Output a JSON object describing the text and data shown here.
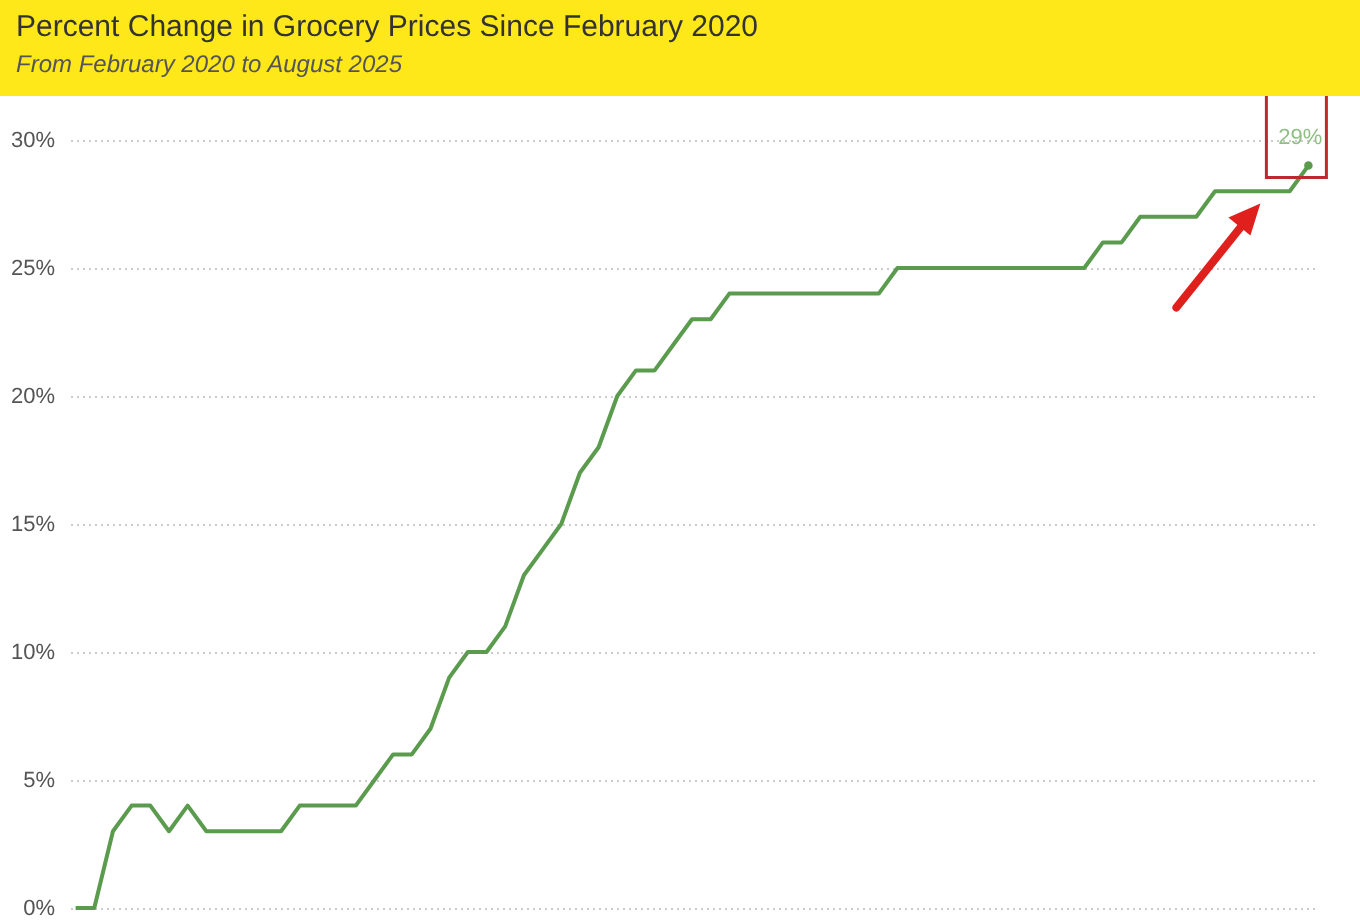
{
  "chart_data": {
    "type": "line",
    "title": "Percent Change in Grocery Prices Since February 2020",
    "subtitle": "From February 2020 to August 2025",
    "categories": [
      null,
      null,
      null,
      null,
      null,
      null,
      null,
      null,
      null,
      null,
      null,
      null,
      null,
      null,
      null,
      null,
      null,
      null,
      null,
      null,
      null,
      null,
      null,
      null,
      null,
      null,
      null,
      null,
      null,
      null,
      null,
      null,
      null,
      null,
      null,
      null,
      null,
      null,
      null,
      null,
      null,
      null,
      null,
      null,
      null,
      null,
      null,
      null,
      null,
      null,
      null,
      null,
      null,
      null,
      null,
      null,
      null,
      null,
      null,
      null,
      null,
      null,
      null,
      null,
      null,
      null,
      null
    ],
    "series": [
      {
        "color": "#5b9b4e",
        "values": [
          0,
          0,
          3,
          4,
          4,
          3,
          4,
          3,
          3,
          3,
          3,
          3,
          4,
          4,
          4,
          4,
          5,
          6,
          6,
          7,
          9,
          10,
          10,
          11,
          13,
          14,
          15,
          17,
          18,
          20,
          21,
          21,
          22,
          23,
          23,
          24,
          24,
          24,
          24,
          24,
          24,
          24,
          24,
          24,
          25,
          25,
          25,
          25,
          25,
          25,
          25,
          25,
          25,
          25,
          25,
          26,
          26,
          27,
          27,
          27,
          27,
          28,
          28,
          28,
          28,
          28,
          29
        ],
        "value_labels": [
          null,
          null,
          null,
          null,
          null,
          null,
          null,
          null,
          null,
          null,
          null,
          null,
          null,
          null,
          null,
          null,
          null,
          null,
          null,
          null,
          null,
          null,
          null,
          null,
          null,
          null,
          null,
          null,
          null,
          null,
          null,
          null,
          null,
          null,
          null,
          null,
          null,
          null,
          null,
          null,
          null,
          null,
          null,
          null,
          null,
          null,
          null,
          null,
          null,
          null,
          null,
          null,
          null,
          null,
          null,
          null,
          null,
          null,
          null,
          null,
          null,
          null,
          null,
          null,
          null,
          null,
          "29%"
        ]
      }
    ],
    "ylim": [
      0,
      30
    ],
    "yticks": [
      {
        "value": 0,
        "label": "0%"
      },
      {
        "value": 5,
        "label": "5%"
      },
      {
        "value": 10,
        "label": "10%"
      },
      {
        "value": 15,
        "label": "15%"
      },
      {
        "value": 20,
        "label": "20%"
      },
      {
        "value": 25,
        "label": "25%"
      },
      {
        "value": 30,
        "label": "30%"
      }
    ],
    "grid": "y",
    "marker": "none",
    "line_style": "solid"
  }
}
